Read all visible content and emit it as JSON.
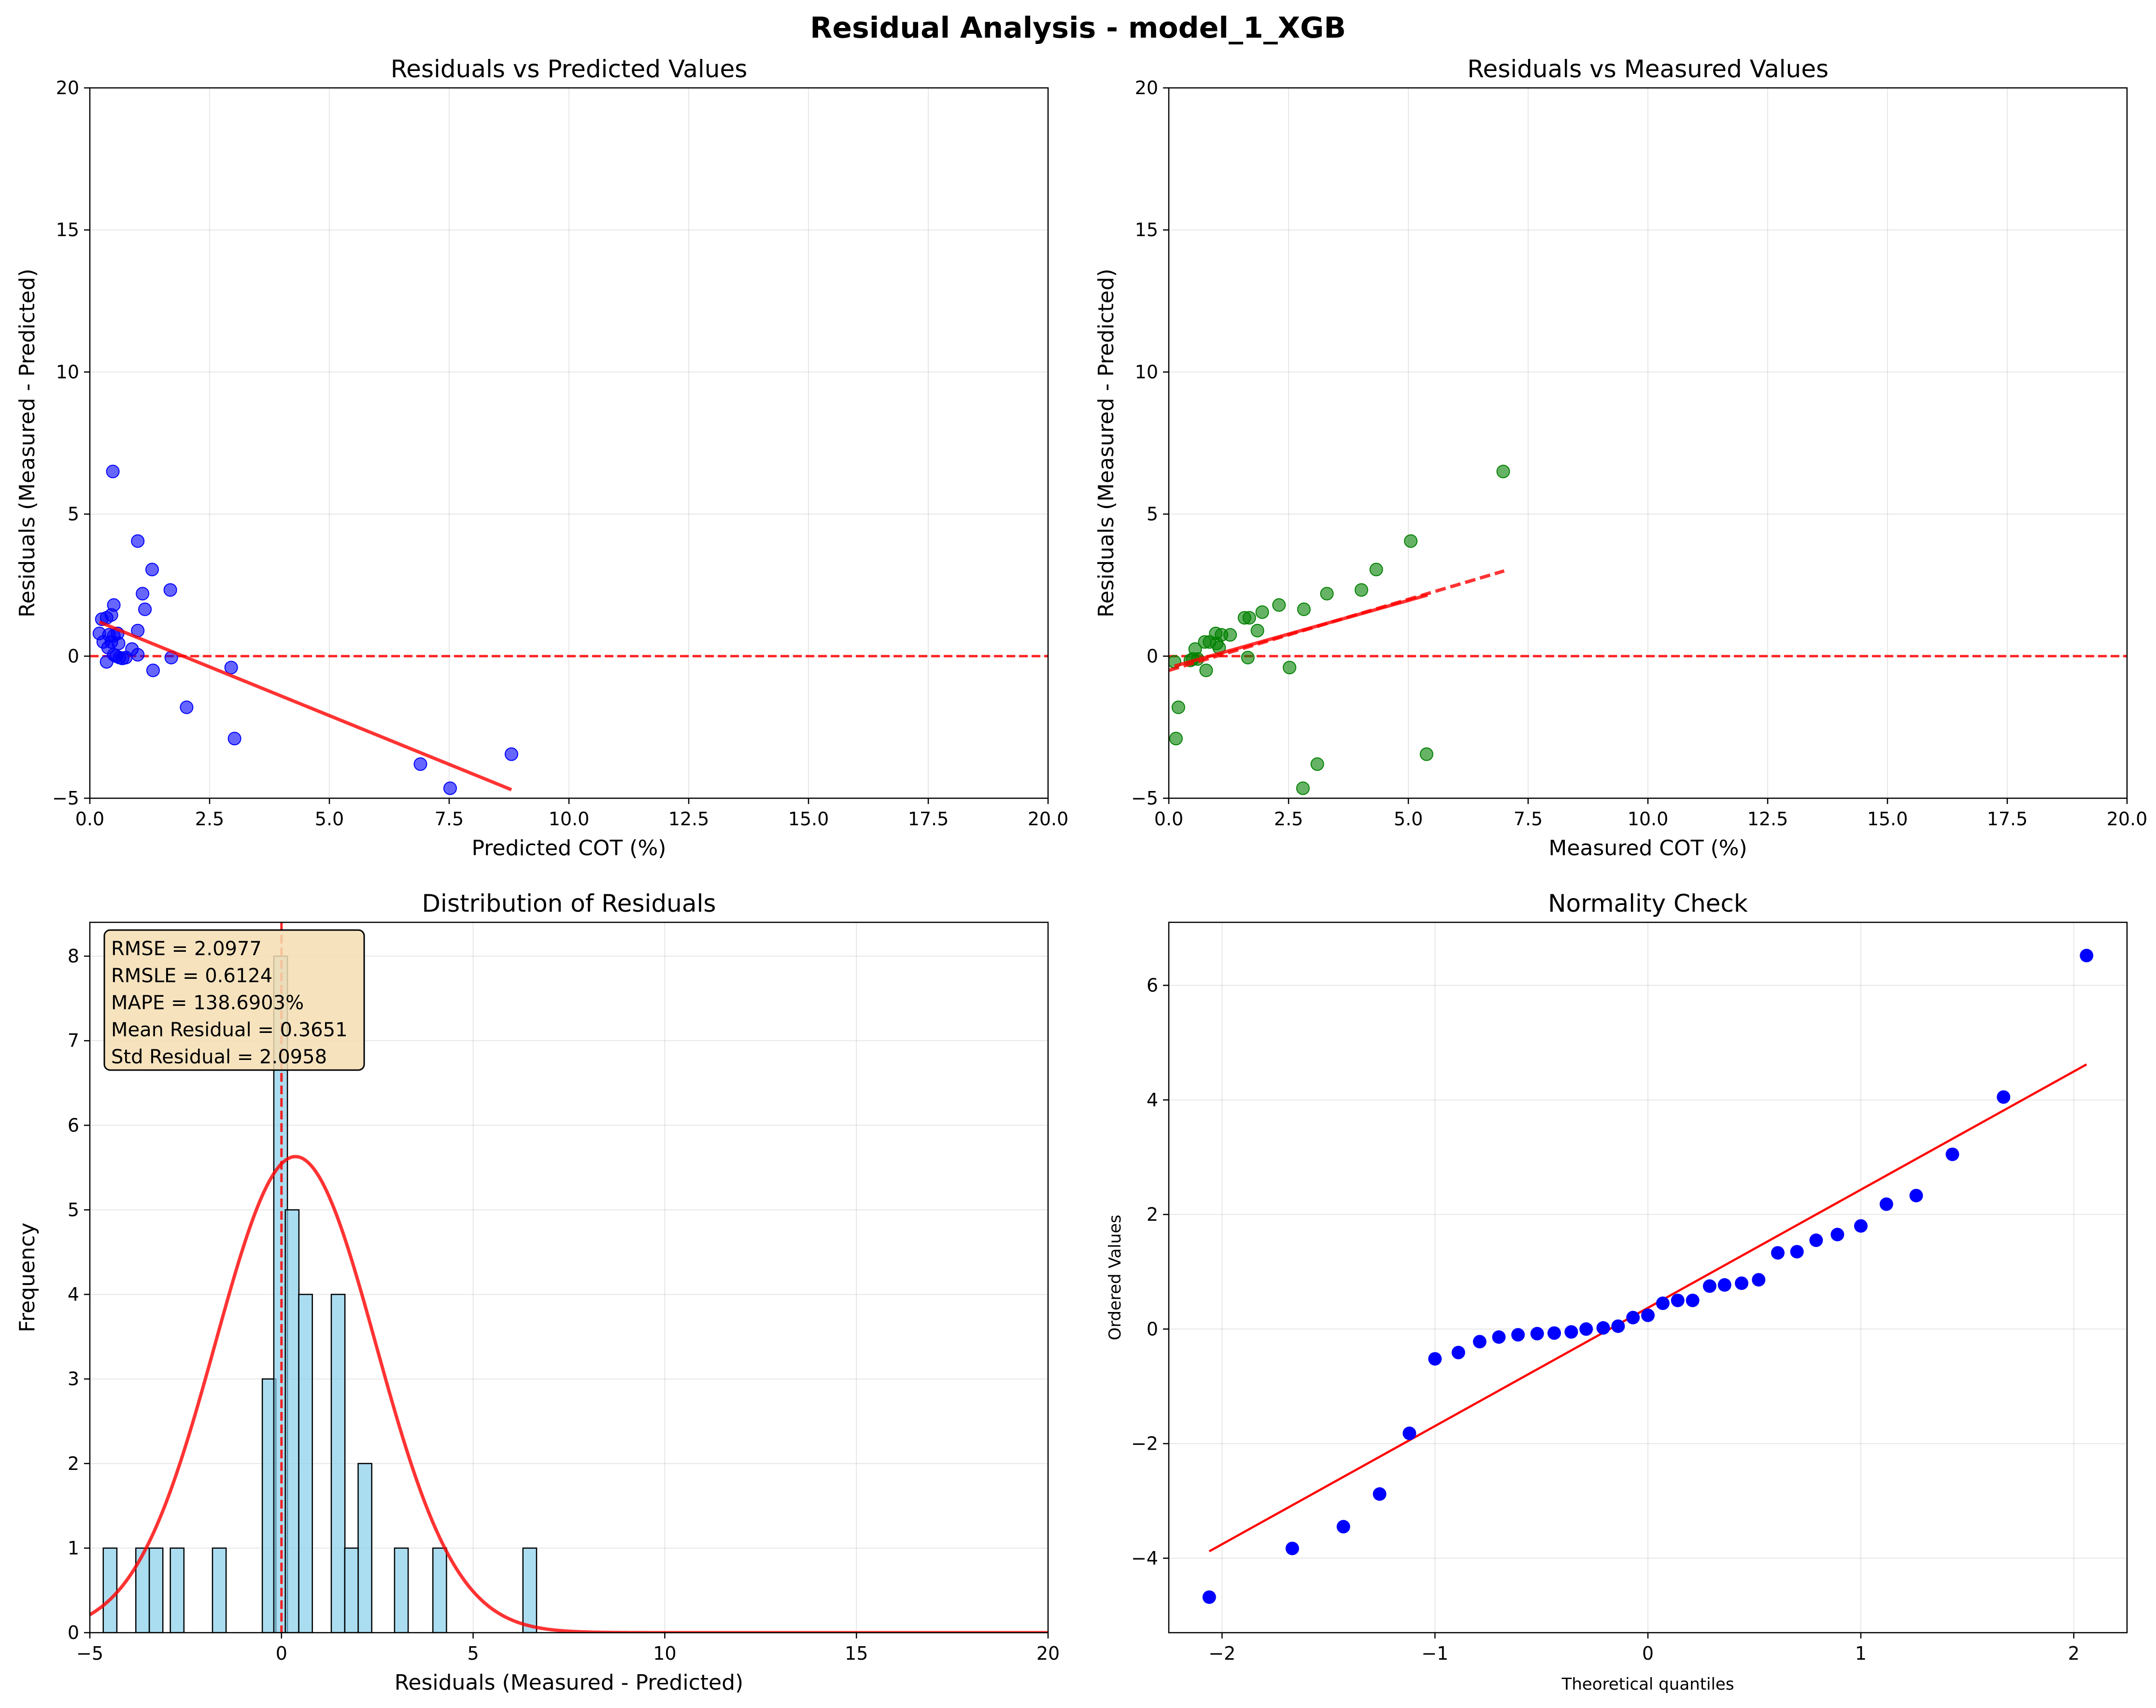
{
  "figure": {
    "suptitle": "Residual Analysis - model_1_XGB"
  },
  "colors": {
    "blue": "#0000ff",
    "green": "#008000",
    "red": "#ff0000",
    "hist": "#87ceeb",
    "box": "#f5deb3",
    "grid": "#b0b0b0"
  },
  "chart_data": [
    {
      "id": "pred",
      "type": "scatter",
      "title": "Residuals vs Predicted Values",
      "xlabel": "Predicted COT (%)",
      "ylabel": "Residuals (Measured - Predicted)",
      "xlim": [
        0,
        20
      ],
      "ylim": [
        -5,
        20
      ],
      "xticks": [
        0,
        2.5,
        5,
        7.5,
        10,
        12.5,
        15,
        17.5,
        20
      ],
      "xticklabels": [
        "0.0",
        "2.5",
        "5.0",
        "7.5",
        "10.0",
        "12.5",
        "15.0",
        "17.5",
        "20.0"
      ],
      "yticks": [
        -5,
        0,
        5,
        10,
        15,
        20
      ],
      "yticklabels": [
        "−5",
        "0",
        "5",
        "10",
        "15",
        "20"
      ],
      "grid": true,
      "points": [
        [
          0.48,
          6.5
        ],
        [
          1.0,
          4.05
        ],
        [
          1.3,
          3.05
        ],
        [
          1.68,
          2.33
        ],
        [
          1.1,
          2.2
        ],
        [
          1.15,
          1.65
        ],
        [
          0.5,
          1.8
        ],
        [
          0.35,
          1.35
        ],
        [
          0.45,
          1.45
        ],
        [
          0.25,
          1.3
        ],
        [
          0.2,
          0.8
        ],
        [
          0.4,
          0.75
        ],
        [
          0.5,
          0.72
        ],
        [
          0.58,
          0.8
        ],
        [
          0.28,
          0.5
        ],
        [
          0.45,
          0.5
        ],
        [
          0.6,
          0.45
        ],
        [
          0.38,
          0.3
        ],
        [
          0.88,
          0.25
        ],
        [
          0.5,
          0.05
        ],
        [
          0.55,
          0.0
        ],
        [
          0.62,
          -0.05
        ],
        [
          0.68,
          -0.08
        ],
        [
          0.75,
          -0.05
        ],
        [
          1.0,
          0.05
        ],
        [
          1.0,
          0.9
        ],
        [
          0.35,
          -0.2
        ],
        [
          1.7,
          -0.05
        ],
        [
          1.32,
          -0.5
        ],
        [
          2.95,
          -0.4
        ],
        [
          2.02,
          -1.8
        ],
        [
          3.02,
          -2.9
        ],
        [
          6.9,
          -3.8
        ],
        [
          7.52,
          -4.65
        ],
        [
          8.8,
          -3.45
        ]
      ],
      "trend": {
        "x": [
          0.2,
          8.8
        ],
        "y": [
          1.2,
          -4.7
        ]
      },
      "zero_line": 0
    },
    {
      "id": "meas",
      "type": "scatter",
      "title": "Residuals vs Measured Values",
      "xlabel": "Measured COT (%)",
      "ylabel": "Residuals (Measured - Predicted)",
      "xlim": [
        0,
        20
      ],
      "ylim": [
        -5,
        20
      ],
      "xticks": [
        0,
        2.5,
        5,
        7.5,
        10,
        12.5,
        15,
        17.5,
        20
      ],
      "xticklabels": [
        "0.0",
        "2.5",
        "5.0",
        "7.5",
        "10.0",
        "12.5",
        "15.0",
        "17.5",
        "20.0"
      ],
      "yticks": [
        -5,
        0,
        5,
        10,
        15,
        20
      ],
      "yticklabels": [
        "−5",
        "0",
        "5",
        "10",
        "15",
        "20"
      ],
      "grid": true,
      "points": [
        [
          6.98,
          6.5
        ],
        [
          5.05,
          4.05
        ],
        [
          4.33,
          3.05
        ],
        [
          4.02,
          2.33
        ],
        [
          3.3,
          2.2
        ],
        [
          2.82,
          1.65
        ],
        [
          2.3,
          1.8
        ],
        [
          1.95,
          1.55
        ],
        [
          1.68,
          1.35
        ],
        [
          1.58,
          1.35
        ],
        [
          1.85,
          0.9
        ],
        [
          1.28,
          0.75
        ],
        [
          1.1,
          0.75
        ],
        [
          0.98,
          0.8
        ],
        [
          0.85,
          0.5
        ],
        [
          0.75,
          0.5
        ],
        [
          1.0,
          0.45
        ],
        [
          1.05,
          0.3
        ],
        [
          0.55,
          0.25
        ],
        [
          0.5,
          -0.1
        ],
        [
          0.45,
          -0.15
        ],
        [
          0.6,
          -0.1
        ],
        [
          0.12,
          -0.2
        ],
        [
          0.78,
          -0.5
        ],
        [
          1.65,
          -0.05
        ],
        [
          2.52,
          -0.4
        ],
        [
          0.2,
          -1.8
        ],
        [
          0.15,
          -2.9
        ],
        [
          3.1,
          -3.8
        ],
        [
          2.8,
          -4.65
        ],
        [
          5.38,
          -3.45
        ]
      ],
      "trend_solid": {
        "x": [
          0.12,
          5.4
        ],
        "y": [
          -0.35,
          2.15
        ]
      },
      "trend_dashed": {
        "x": [
          0.0,
          7.0
        ],
        "y": [
          -0.5,
          3.0
        ]
      },
      "zero_line": 0
    },
    {
      "id": "hist",
      "type": "bar",
      "title": "Distribution of Residuals",
      "xlabel": "Residuals (Measured - Predicted)",
      "ylabel": "Frequency",
      "xlim": [
        -5,
        20
      ],
      "ylim": [
        0,
        8.4
      ],
      "xticks": [
        -5,
        0,
        5,
        10,
        15,
        20
      ],
      "xticklabels": [
        "−5",
        "0",
        "5",
        "10",
        "15",
        "20"
      ],
      "yticks": [
        0,
        1,
        2,
        3,
        4,
        5,
        6,
        7,
        8
      ],
      "yticklabels": [
        "0",
        "1",
        "2",
        "3",
        "4",
        "5",
        "6",
        "7",
        "8"
      ],
      "grid": true,
      "bin_width": 0.355,
      "bins": [
        [
          -4.65,
          1
        ],
        [
          -3.8,
          1
        ],
        [
          -3.45,
          1
        ],
        [
          -2.9,
          1
        ],
        [
          -1.8,
          1
        ],
        [
          -0.5,
          3
        ],
        [
          -0.2,
          8
        ],
        [
          0.1,
          5
        ],
        [
          0.45,
          4
        ],
        [
          1.3,
          4
        ],
        [
          1.65,
          1
        ],
        [
          2.0,
          2
        ],
        [
          2.95,
          1
        ],
        [
          3.95,
          1
        ],
        [
          6.3,
          1
        ]
      ],
      "mean_line": 0,
      "normal_curve": {
        "mean": 0.3651,
        "std": 2.0958,
        "peak": 5.63
      },
      "stats": [
        "RMSE = 2.0977",
        "RMSLE = 0.6124",
        "MAPE = 138.6903%",
        "Mean Residual = 0.3651",
        "Std Residual = 2.0958"
      ]
    },
    {
      "id": "qq",
      "type": "scatter",
      "title": "Normality Check",
      "xlabel": "Theoretical quantiles",
      "ylabel": "Ordered Values",
      "xlim": [
        -2.25,
        2.25
      ],
      "ylim": [
        -5.3,
        7.1
      ],
      "xticks": [
        -2,
        -1,
        0,
        1,
        2
      ],
      "xticklabels": [
        "−2",
        "−1",
        "0",
        "1",
        "2"
      ],
      "yticks": [
        -4,
        -2,
        0,
        2,
        4,
        6
      ],
      "yticklabels": [
        "−4",
        "−2",
        "0",
        "2",
        "4",
        "6"
      ],
      "grid": true,
      "points": [
        [
          -2.06,
          -4.68
        ],
        [
          -1.67,
          -3.83
        ],
        [
          -1.43,
          -3.45
        ],
        [
          -1.26,
          -2.88
        ],
        [
          -1.12,
          -1.82
        ],
        [
          -1.0,
          -0.52
        ],
        [
          -0.89,
          -0.41
        ],
        [
          -0.79,
          -0.22
        ],
        [
          -0.7,
          -0.14
        ],
        [
          -0.61,
          -0.1
        ],
        [
          -0.52,
          -0.08
        ],
        [
          -0.44,
          -0.07
        ],
        [
          -0.36,
          -0.05
        ],
        [
          -0.29,
          -0.0
        ],
        [
          -0.21,
          0.02
        ],
        [
          -0.14,
          0.05
        ],
        [
          -0.07,
          0.2
        ],
        [
          0.0,
          0.24
        ],
        [
          0.07,
          0.45
        ],
        [
          0.14,
          0.5
        ],
        [
          0.21,
          0.5
        ],
        [
          0.29,
          0.75
        ],
        [
          0.36,
          0.77
        ],
        [
          0.44,
          0.8
        ],
        [
          0.52,
          0.86
        ],
        [
          0.61,
          1.33
        ],
        [
          0.7,
          1.35
        ],
        [
          0.79,
          1.55
        ],
        [
          0.89,
          1.65
        ],
        [
          1.0,
          1.8
        ],
        [
          1.12,
          2.18
        ],
        [
          1.26,
          2.33
        ],
        [
          1.43,
          3.05
        ],
        [
          1.67,
          4.05
        ],
        [
          2.06,
          6.52
        ]
      ],
      "fit_line": {
        "x": [
          -2.06,
          2.06
        ],
        "y": [
          -3.88,
          4.62
        ]
      }
    }
  ]
}
